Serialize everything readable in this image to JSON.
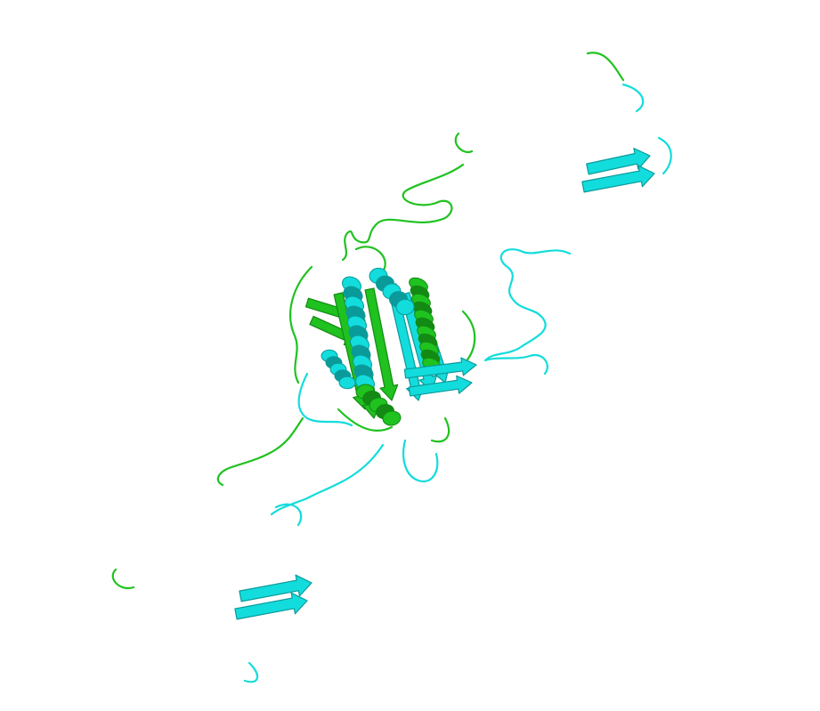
{
  "image": {
    "subject": "protein-structure-cartoon",
    "background": "#ffffff"
  },
  "chains": [
    {
      "id": "chain-green",
      "color": "#1fc21f",
      "shade": "#138a13",
      "light": "#5fe05f"
    },
    {
      "id": "chain-cyan",
      "color": "#13dcdc",
      "shade": "#0b9a9a",
      "light": "#7ff0f0"
    }
  ]
}
